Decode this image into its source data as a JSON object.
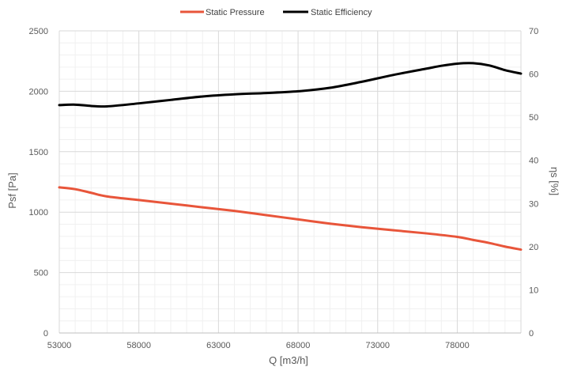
{
  "chart_data": {
    "type": "line",
    "title": "",
    "xlabel": "Q [m3/h]",
    "ylabel_left": "Psf [Pa]",
    "ylabel_right": "ηs [%]",
    "xlim": [
      53000,
      82000
    ],
    "ylim_left": [
      0,
      2500
    ],
    "ylim_right": [
      0,
      70
    ],
    "x_ticks": [
      "53000",
      "58000",
      "63000",
      "68000",
      "73000",
      "78000"
    ],
    "x_tick_values": [
      53000,
      58000,
      63000,
      68000,
      73000,
      78000
    ],
    "y_left_ticks": [
      "0",
      "500",
      "1000",
      "1500",
      "2000",
      "2500"
    ],
    "y_left_tick_values": [
      0,
      500,
      1000,
      1500,
      2000,
      2500
    ],
    "y_right_ticks": [
      "0",
      "10",
      "20",
      "30",
      "40",
      "50",
      "60",
      "70"
    ],
    "y_right_tick_values": [
      0,
      10,
      20,
      30,
      40,
      50,
      60,
      70
    ],
    "grid": true,
    "legend_position": "top-center",
    "series": [
      {
        "name": "Static Pressure",
        "axis": "left",
        "color": "#e8553a",
        "x": [
          53000,
          54000,
          55000,
          56000,
          58000,
          60000,
          62000,
          64000,
          66000,
          68000,
          70000,
          72000,
          74000,
          76000,
          78000,
          79000,
          80000,
          81000,
          82000
        ],
        "values": [
          1205,
          1190,
          1160,
          1130,
          1100,
          1070,
          1040,
          1010,
          975,
          940,
          905,
          875,
          850,
          825,
          795,
          770,
          745,
          715,
          690
        ]
      },
      {
        "name": "Static Efficiency",
        "axis": "right",
        "color": "#000000",
        "x": [
          53000,
          54000,
          55000,
          56000,
          58000,
          60000,
          62000,
          64000,
          66000,
          68000,
          70000,
          72000,
          74000,
          76000,
          77000,
          78000,
          79000,
          80000,
          81000,
          82000
        ],
        "values": [
          52.8,
          52.9,
          52.6,
          52.5,
          53.2,
          54.0,
          54.8,
          55.3,
          55.6,
          56.0,
          56.8,
          58.2,
          59.8,
          61.2,
          61.9,
          62.4,
          62.5,
          62.0,
          60.9,
          60.1
        ]
      }
    ]
  }
}
